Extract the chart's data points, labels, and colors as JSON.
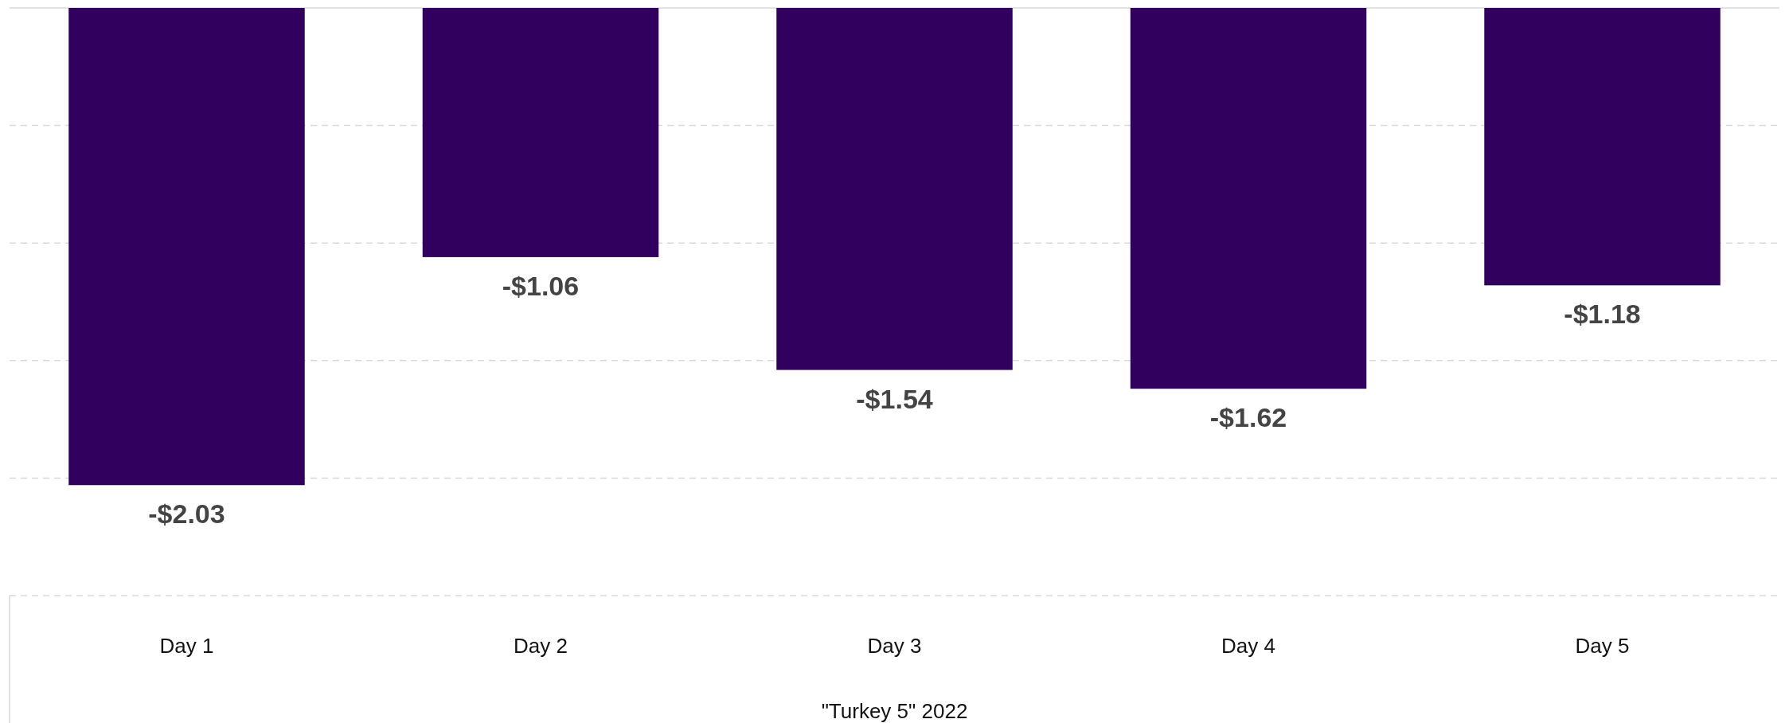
{
  "chart_data": {
    "type": "bar",
    "xlabel": "\"Turkey 5\" 2022",
    "categories": [
      "Day 1",
      "Day 2",
      "Day 3",
      "Day 4",
      "Day 5"
    ],
    "series": [
      {
        "color": "#31005e",
        "values": [
          -2.03,
          -1.06,
          -1.54,
          -1.62,
          -1.18
        ],
        "value_labels": [
          "-$2.03",
          "-$1.06",
          "-$1.54",
          "-$1.62",
          "-$1.18"
        ]
      }
    ],
    "ylim": [
      -2.5,
      0
    ],
    "yticks": [
      {
        "value": 0,
        "label": null
      },
      {
        "value": -0.5,
        "label": null
      },
      {
        "value": -1,
        "label": null
      },
      {
        "value": -1.5,
        "label": null
      },
      {
        "value": -2,
        "label": null
      },
      {
        "value": -2.5,
        "label": null
      }
    ],
    "grid": "y",
    "tick_labels": "x"
  }
}
